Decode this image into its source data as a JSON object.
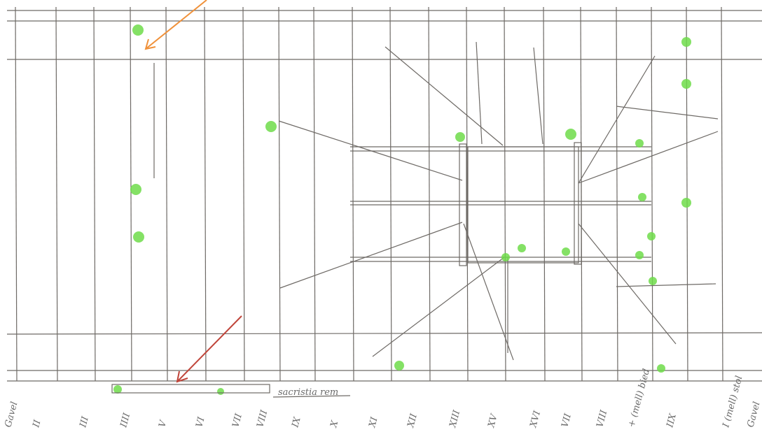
{
  "column_labels": [
    "Gavel",
    "II",
    "III",
    "IIII",
    "V",
    "VI",
    "VII",
    "VIII",
    "IX",
    "X",
    "XI",
    "XII",
    "XIII",
    "XV",
    "XVI",
    "VII",
    "VIII",
    "+ (mell) bied",
    "IIX",
    "I (mell) stol",
    "Gavel"
  ],
  "annotation": "sacristia rem"
}
